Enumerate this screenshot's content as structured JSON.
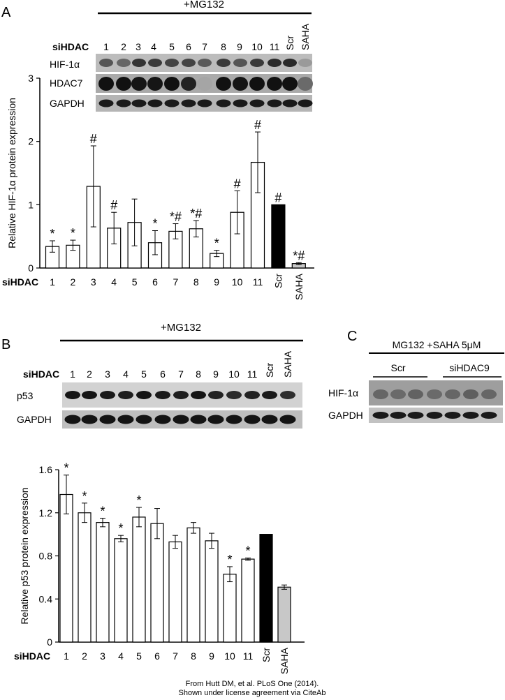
{
  "panels": {
    "A": {
      "letter": "A",
      "treatment": "+MG132",
      "row_label": "siHDAC",
      "lanes": [
        "1",
        "2",
        "3",
        "4",
        "5",
        "6",
        "7",
        "8",
        "9",
        "10",
        "11",
        "Scr",
        "SAHA"
      ],
      "blots": [
        "HIF-1α",
        "HDAC7",
        "GAPDH"
      ]
    },
    "B": {
      "letter": "B",
      "treatment": "+MG132",
      "row_label": "siHDAC",
      "lanes": [
        "1",
        "2",
        "3",
        "4",
        "5",
        "6",
        "7",
        "8",
        "9",
        "10",
        "11",
        "Scr",
        "SAHA"
      ],
      "blots": [
        "p53",
        "GAPDH"
      ]
    },
    "C": {
      "letter": "C",
      "treatment": "MG132 +SAHA 5μM",
      "groups": [
        "Scr",
        "siHDAC9"
      ],
      "blots": [
        "HIF-1α",
        "GAPDH"
      ]
    }
  },
  "chart_data": [
    {
      "type": "bar",
      "panel": "A",
      "ylabel": "Relative HIF-1α protein expression",
      "xlabel": "siHDAC",
      "categories": [
        "1",
        "2",
        "3",
        "4",
        "5",
        "6",
        "7",
        "8",
        "9",
        "10",
        "11",
        "Scr",
        "SAHA"
      ],
      "values": [
        0.34,
        0.36,
        1.29,
        0.63,
        0.72,
        0.4,
        0.58,
        0.62,
        0.23,
        0.88,
        1.67,
        1.0,
        0.07
      ],
      "errors": [
        0.09,
        0.08,
        0.64,
        0.25,
        0.37,
        0.19,
        0.12,
        0.13,
        0.05,
        0.34,
        0.48,
        0,
        0.015
      ],
      "annotations": [
        "*",
        "*",
        "#",
        "#",
        "",
        "*",
        "*#",
        "*#",
        "*",
        "#",
        "#",
        "#",
        "*#"
      ],
      "bar_colors": [
        "#ffffff",
        "#ffffff",
        "#ffffff",
        "#ffffff",
        "#ffffff",
        "#ffffff",
        "#ffffff",
        "#ffffff",
        "#ffffff",
        "#ffffff",
        "#ffffff",
        "#000000",
        "#c8c8c8"
      ],
      "yticks": [
        "0",
        "1",
        "2",
        "3"
      ],
      "ylim": [
        0,
        3
      ]
    },
    {
      "type": "bar",
      "panel": "B",
      "ylabel": "Relative p53 protein expression",
      "xlabel": "siHDAC",
      "categories": [
        "1",
        "2",
        "3",
        "4",
        "5",
        "6",
        "7",
        "8",
        "9",
        "10",
        "11",
        "Scr",
        "SAHA"
      ],
      "values": [
        1.37,
        1.2,
        1.11,
        0.96,
        1.16,
        1.1,
        0.93,
        1.06,
        0.94,
        0.63,
        0.77,
        1.0,
        0.51
      ],
      "errors": [
        0.18,
        0.09,
        0.04,
        0.03,
        0.09,
        0.14,
        0.06,
        0.05,
        0.07,
        0.07,
        0.01,
        0,
        0.02
      ],
      "annotations": [
        "*",
        "*",
        "*",
        "*",
        "*",
        "",
        "",
        "",
        "",
        "*",
        "*",
        "",
        ""
      ],
      "bar_colors": [
        "#ffffff",
        "#ffffff",
        "#ffffff",
        "#ffffff",
        "#ffffff",
        "#ffffff",
        "#ffffff",
        "#ffffff",
        "#ffffff",
        "#ffffff",
        "#ffffff",
        "#000000",
        "#c8c8c8"
      ],
      "yticks": [
        "0",
        "0.4",
        "0.8",
        "1.2",
        "1.6"
      ],
      "ylim": [
        0,
        1.6
      ]
    }
  ],
  "credit": {
    "line1": "From Hutt DM, et al. PLoS One (2014).",
    "line2": "Shown under license agreement via CiteAb"
  }
}
